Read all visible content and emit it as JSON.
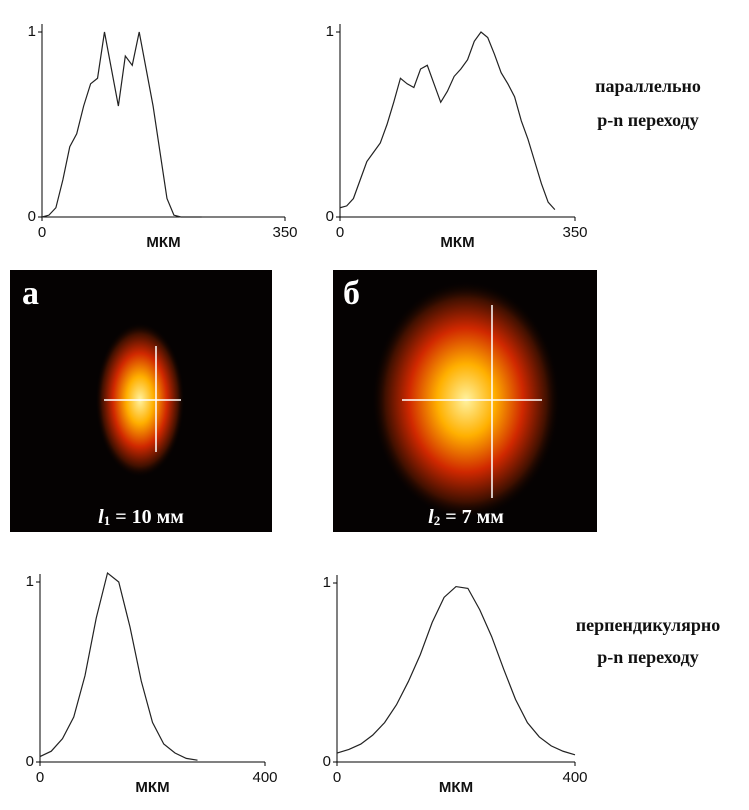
{
  "chart_data": [
    {
      "type": "line",
      "xlabel": "МКМ",
      "x": [
        0,
        10,
        20,
        30,
        40,
        50,
        60,
        70,
        80,
        90,
        100,
        110,
        120,
        130,
        140,
        150,
        160,
        170,
        180,
        190,
        200,
        210,
        220,
        230,
        240,
        250,
        260,
        270,
        280,
        290,
        300,
        310,
        320,
        330,
        340,
        350
      ],
      "series": [
        {
          "color": "#222",
          "values": [
            0,
            0.01,
            0.05,
            0.2,
            0.38,
            0.45,
            0.6,
            0.72,
            0.75,
            1.0,
            0.8,
            0.6,
            0.87,
            0.82,
            1.0,
            0.8,
            0.6,
            0.35,
            0.1,
            0.01,
            0,
            0,
            0,
            0,
            null,
            null,
            null,
            null,
            null,
            null,
            null,
            null,
            null,
            null,
            null,
            null
          ]
        }
      ],
      "xlim": [
        0,
        350
      ],
      "ylim": [
        0,
        1
      ],
      "xticks": [
        0,
        350
      ],
      "yticks": [
        0,
        1
      ]
    },
    {
      "type": "line",
      "xlabel": "МКМ",
      "x": [
        0,
        10,
        20,
        30,
        40,
        50,
        60,
        70,
        80,
        90,
        100,
        110,
        120,
        130,
        140,
        150,
        160,
        170,
        180,
        190,
        200,
        210,
        220,
        230,
        240,
        250,
        260,
        270,
        280,
        290,
        300,
        310,
        320,
        330,
        340,
        350
      ],
      "series": [
        {
          "color": "#222",
          "values": [
            0.05,
            0.06,
            0.1,
            0.2,
            0.3,
            0.35,
            0.4,
            0.5,
            0.62,
            0.75,
            0.72,
            0.7,
            0.8,
            0.82,
            0.72,
            0.62,
            0.68,
            0.76,
            0.8,
            0.85,
            0.95,
            1.0,
            0.97,
            0.88,
            0.78,
            0.72,
            0.65,
            0.52,
            0.42,
            0.3,
            0.18,
            0.08,
            0.04,
            null,
            null,
            null
          ]
        }
      ],
      "xlim": [
        0,
        350
      ],
      "ylim": [
        0,
        1
      ],
      "xticks": [
        0,
        350
      ],
      "yticks": [
        0,
        1
      ]
    },
    {
      "type": "line",
      "xlabel": "МКМ",
      "x": [
        0,
        20,
        40,
        60,
        80,
        100,
        120,
        140,
        160,
        180,
        200,
        220,
        240,
        260,
        280,
        300,
        320,
        340,
        360,
        380,
        400
      ],
      "series": [
        {
          "color": "#222",
          "values": [
            0.03,
            0.06,
            0.13,
            0.25,
            0.48,
            0.8,
            1.05,
            1.0,
            0.75,
            0.45,
            0.22,
            0.1,
            0.05,
            0.02,
            0.01,
            null,
            null,
            null,
            null,
            null,
            null
          ]
        }
      ],
      "xlim": [
        0,
        400
      ],
      "ylim": [
        0,
        1
      ],
      "xticks": [
        0,
        400
      ],
      "yticks": [
        0,
        1
      ]
    },
    {
      "type": "line",
      "xlabel": "МКМ",
      "x": [
        0,
        20,
        40,
        60,
        80,
        100,
        120,
        140,
        160,
        180,
        200,
        220,
        240,
        260,
        280,
        300,
        320,
        340,
        360,
        380,
        400
      ],
      "series": [
        {
          "color": "#222",
          "values": [
            0.05,
            0.07,
            0.1,
            0.15,
            0.22,
            0.32,
            0.45,
            0.6,
            0.78,
            0.92,
            0.98,
            0.97,
            0.85,
            0.7,
            0.52,
            0.35,
            0.22,
            0.14,
            0.09,
            0.06,
            0.04
          ]
        }
      ],
      "xlim": [
        0,
        400
      ],
      "ylim": [
        0,
        1
      ],
      "xticks": [
        0,
        400
      ],
      "yticks": [
        0,
        1
      ]
    }
  ],
  "side_labels": {
    "top": [
      "параллельно",
      "p-n переходу"
    ],
    "bottom": [
      "перпендикулярно",
      "p-n переходу"
    ]
  },
  "images": [
    {
      "letter": "а",
      "var": "l",
      "sub": "1",
      "rest": " = 10 мм"
    },
    {
      "letter": "б",
      "var": "l",
      "sub": "2",
      "rest": " = 7 мм"
    }
  ]
}
